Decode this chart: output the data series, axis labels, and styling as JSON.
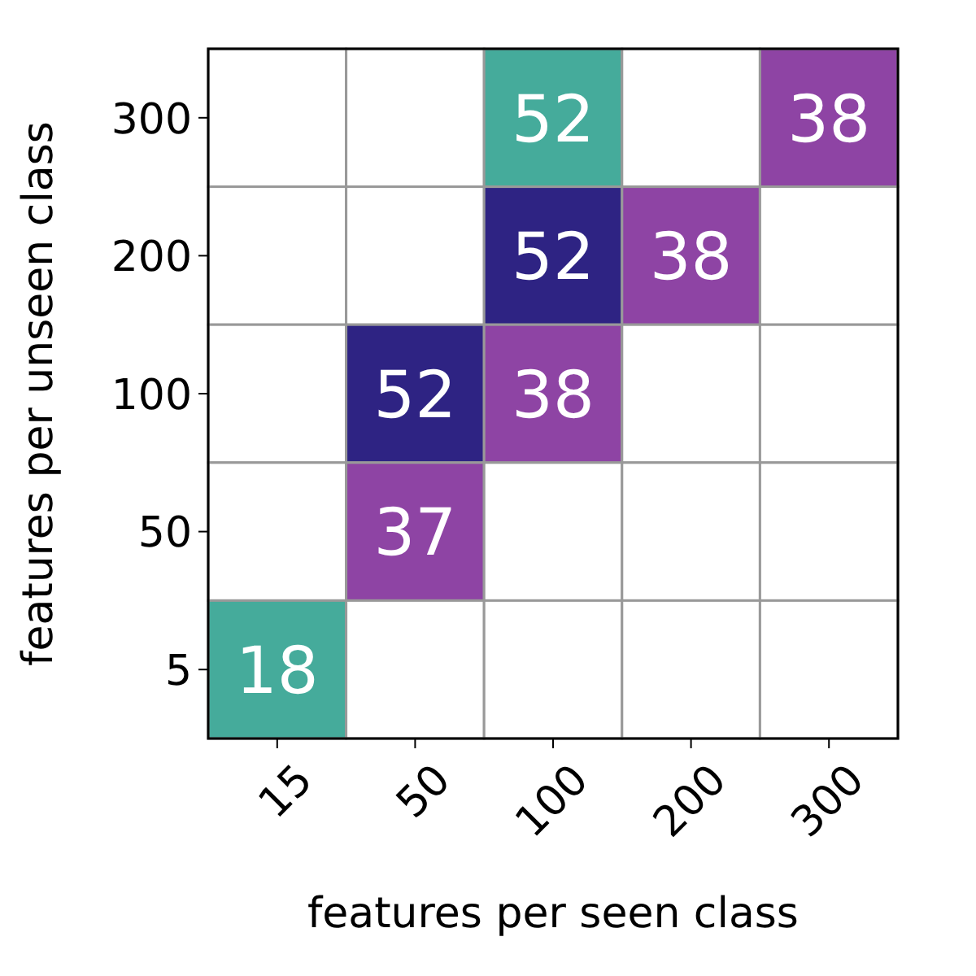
{
  "chart_data": {
    "type": "heatmap",
    "xlabel": "features per seen class",
    "ylabel": "features per unseen class",
    "categories": [
      "15",
      "50",
      "100",
      "200",
      "300"
    ],
    "y_categories": [
      "300",
      "200",
      "100",
      "50",
      "5"
    ],
    "cells": [
      [
        null,
        null,
        52,
        null,
        38
      ],
      [
        null,
        null,
        52,
        38,
        null
      ],
      [
        null,
        52,
        38,
        null,
        null
      ],
      [
        null,
        37,
        null,
        null,
        null
      ],
      [
        18,
        null,
        null,
        null,
        null
      ]
    ],
    "colors": [
      [
        null,
        null,
        "#45ab9b",
        null,
        "#8e44a4"
      ],
      [
        null,
        null,
        "#2e2383",
        "#8e44a4",
        null
      ],
      [
        null,
        "#2e2383",
        "#8e44a4",
        null,
        null
      ],
      [
        null,
        "#8e44a4",
        null,
        null,
        null
      ],
      [
        "#45ab9b",
        null,
        null,
        null,
        null
      ]
    ],
    "data_labels": true
  }
}
